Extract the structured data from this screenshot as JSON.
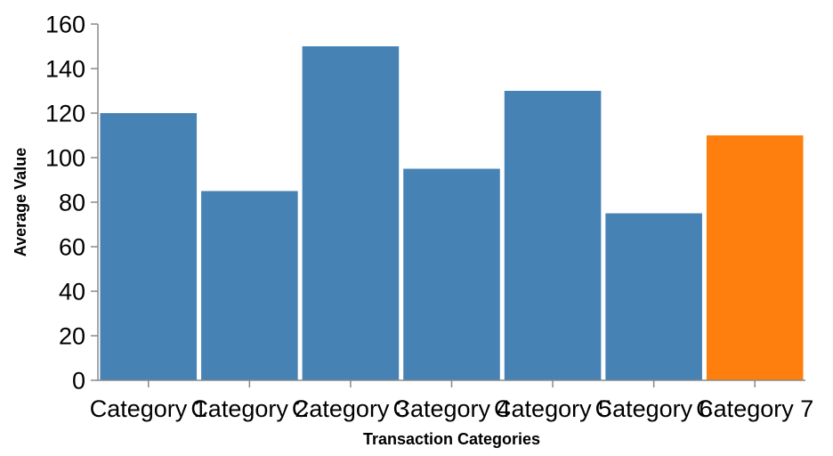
{
  "chart_data": {
    "type": "bar",
    "title": "",
    "xlabel": "Transaction Categories",
    "ylabel": "Average Value",
    "ylim": [
      0,
      160
    ],
    "yticks": [
      0,
      20,
      40,
      60,
      80,
      100,
      120,
      140,
      160
    ],
    "grid": false,
    "categories": [
      "Category 1",
      "Category 2",
      "Category 3",
      "Category 4",
      "Category 5",
      "Category 6",
      "Category 7"
    ],
    "values": [
      120,
      85,
      150,
      95,
      130,
      75,
      110
    ],
    "colors": [
      "#4682b4",
      "#4682b4",
      "#4682b4",
      "#4682b4",
      "#4682b4",
      "#4682b4",
      "#ff7f0e"
    ],
    "bar_color": "#4682b4",
    "highlight_color": "#ff7f0e",
    "highlight_category": "Category 7"
  }
}
